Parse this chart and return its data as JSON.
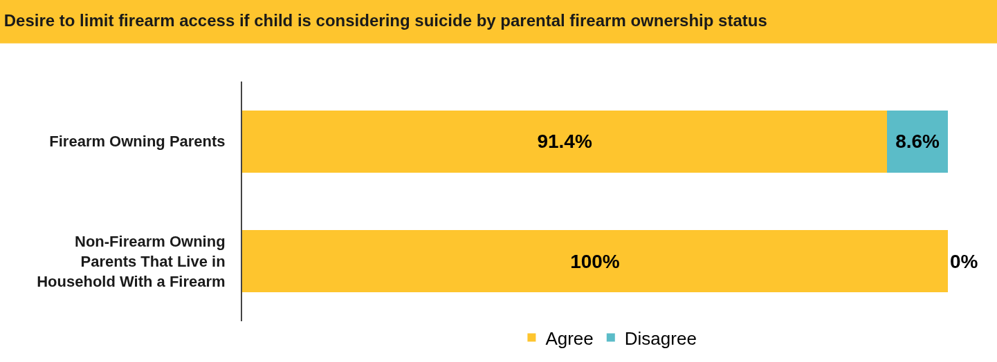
{
  "chart_data": {
    "type": "bar",
    "orientation": "horizontal",
    "stacked": true,
    "title": "Desire to limit firearm access if child is considering suicide by parental firearm ownership status",
    "categories": [
      "Firearm Owning Parents",
      "Non-Firearm Owning Parents That Live in Household With a Firearm"
    ],
    "series": [
      {
        "name": "Agree",
        "color": "#fec52e",
        "values": [
          91.4,
          100
        ],
        "value_labels": [
          "91.4%",
          "100%"
        ]
      },
      {
        "name": "Disagree",
        "color": "#5bbcc8",
        "values": [
          8.6,
          0
        ],
        "value_labels": [
          "8.6%",
          "0%"
        ]
      }
    ],
    "legend": "bottom",
    "tick_labels": "y"
  }
}
